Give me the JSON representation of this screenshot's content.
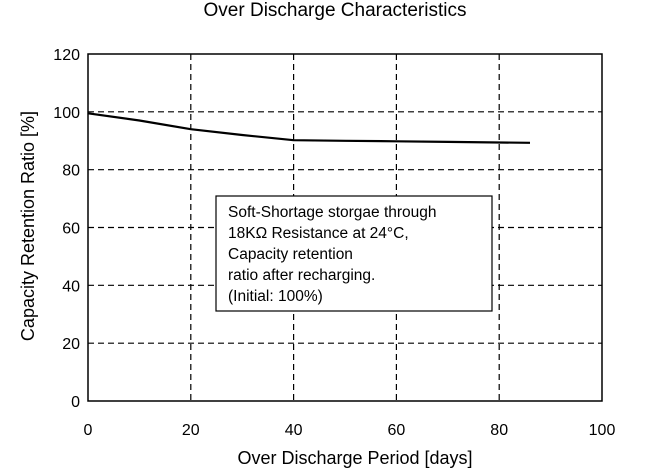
{
  "chart_data": {
    "type": "line",
    "title": "Over Discharge Characteristics",
    "xlabel": "Over Discharge Period [days]",
    "ylabel": "Capacity Retention Ratio [%]",
    "xlim": [
      0,
      100
    ],
    "ylim": [
      0,
      120
    ],
    "x_ticks": [
      0,
      20,
      40,
      60,
      80,
      100
    ],
    "y_ticks": [
      0,
      20,
      40,
      60,
      80,
      100,
      120
    ],
    "x_tick_labels": [
      "0",
      "20",
      "40",
      "60",
      "80",
      "100"
    ],
    "y_tick_labels": [
      "0",
      "20",
      "40",
      "60",
      "80",
      "100",
      "120"
    ],
    "grid": true,
    "series": [
      {
        "x": [
          0,
          10,
          20,
          30,
          40,
          50,
          60,
          70,
          80,
          86
        ],
        "y": [
          99.5,
          97,
          94,
          92,
          90.2,
          90.0,
          89.8,
          89.6,
          89.4,
          89.3
        ]
      }
    ],
    "annotation": {
      "lines": [
        "Soft-Shortage storgae through",
        "18KΩ Resistance at 24°C,",
        "Capacity retention",
        "ratio after recharging.",
        "(Initial: 100%)"
      ]
    }
  }
}
